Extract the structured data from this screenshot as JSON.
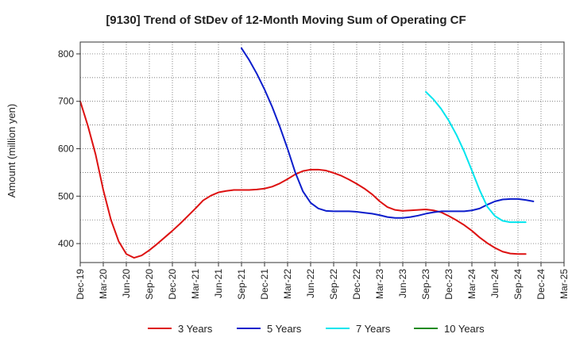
{
  "chart_data": {
    "type": "line",
    "title": "[9130]  Trend of StDev of 12-Month Moving Sum of Operating CF",
    "ylabel": "Amount (million yen)",
    "xlabel": "",
    "ylim": [
      360,
      825
    ],
    "yticks": [
      400,
      500,
      600,
      700,
      800
    ],
    "x_ticks": [
      "Dec-19",
      "Mar-20",
      "Jun-20",
      "Sep-20",
      "Dec-20",
      "Mar-21",
      "Jun-21",
      "Sep-21",
      "Dec-21",
      "Mar-22",
      "Jun-22",
      "Sep-22",
      "Dec-22",
      "Mar-23",
      "Jun-23",
      "Sep-23",
      "Dec-23",
      "Mar-24",
      "Jun-24",
      "Sep-24",
      "Dec-24",
      "Mar-25"
    ],
    "grid": true,
    "legend_position": "bottom",
    "series": [
      {
        "name": "3 Years",
        "color": "#dd1111",
        "start": "Dec-19",
        "values": [
          700,
          648,
          588,
          513,
          450,
          405,
          378,
          370,
          375,
          386,
          399,
          413,
          427,
          442,
          458,
          474,
          491,
          501,
          508,
          511,
          513,
          513,
          513,
          514,
          516,
          520,
          527,
          536,
          546,
          553,
          556,
          556,
          554,
          549,
          543,
          535,
          526,
          516,
          504,
          489,
          477,
          471,
          469,
          470,
          471,
          472,
          470,
          466,
          458,
          449,
          439,
          427,
          413,
          401,
          391,
          383,
          379,
          378,
          378
        ]
      },
      {
        "name": "5 Years",
        "color": "#0d1ecc",
        "start": "Sep-21",
        "values": [
          812,
          787,
          758,
          725,
          688,
          646,
          600,
          550,
          510,
          486,
          474,
          469,
          468,
          468,
          468,
          467,
          465,
          463,
          460,
          456,
          454,
          454,
          456,
          459,
          463,
          466,
          468,
          468,
          468,
          468,
          470,
          474,
          482,
          489,
          493,
          494,
          494,
          492,
          489
        ]
      },
      {
        "name": "7 Years",
        "color": "#00e5ee",
        "start": "Sep-23",
        "values": [
          720,
          704,
          684,
          659,
          629,
          594,
          554,
          513,
          478,
          458,
          448,
          445,
          445,
          445
        ]
      },
      {
        "name": "10 Years",
        "color": "#228b22",
        "start": "Sep-23",
        "values": []
      }
    ]
  }
}
